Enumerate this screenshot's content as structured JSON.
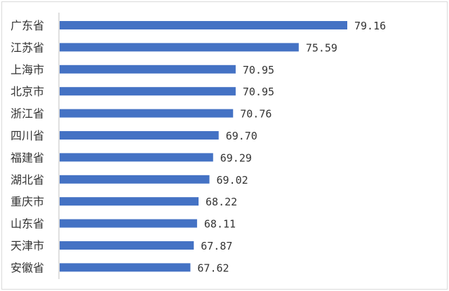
{
  "chart_data": {
    "type": "bar",
    "orientation": "horizontal",
    "title": "",
    "xlabel": "",
    "ylabel": "",
    "categories": [
      "广东省",
      "江苏省",
      "上海市",
      "北京市",
      "浙江省",
      "四川省",
      "福建省",
      "湖北省",
      "重庆市",
      "山东省",
      "天津市",
      "安徽省"
    ],
    "values": [
      79.16,
      75.59,
      70.95,
      70.95,
      70.76,
      69.7,
      69.29,
      69.02,
      68.22,
      68.11,
      67.87,
      67.62
    ],
    "value_labels": [
      "79.16",
      "75.59",
      "70.95",
      "70.95",
      "70.76",
      "69.70",
      "69.29",
      "69.02",
      "68.22",
      "68.11",
      "67.87",
      "67.62"
    ],
    "bar_color": "#4472C4",
    "grid": false,
    "legend": "none"
  }
}
